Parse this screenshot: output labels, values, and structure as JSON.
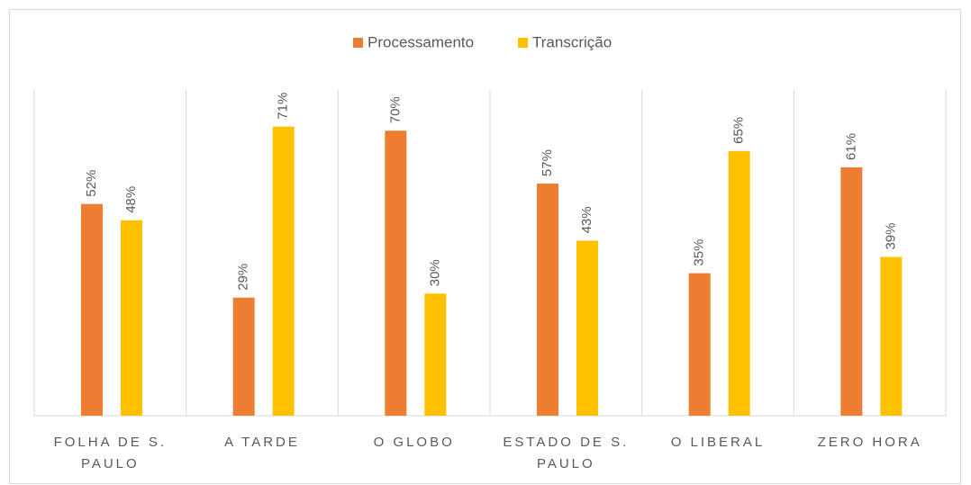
{
  "chart_data": {
    "type": "bar",
    "categories": [
      "FOLHA DE S. PAULO",
      "A TARDE",
      "O GLOBO",
      "ESTADO DE S. PAULO",
      "O LIBERAL",
      "ZERO HORA"
    ],
    "series": [
      {
        "name": "Processamento",
        "color": "#ed7d31",
        "values": [
          52,
          29,
          70,
          57,
          35,
          61
        ],
        "value_labels": [
          "52%",
          "29%",
          "70%",
          "57%",
          "35%",
          "61%"
        ]
      },
      {
        "name": "Transcrição",
        "color": "#ffc000",
        "values": [
          48,
          71,
          30,
          43,
          65,
          39
        ],
        "value_labels": [
          "48%",
          "71%",
          "30%",
          "43%",
          "65%",
          "39%"
        ]
      }
    ],
    "ylim": [
      0,
      80
    ],
    "legend": "top",
    "grid": false
  }
}
